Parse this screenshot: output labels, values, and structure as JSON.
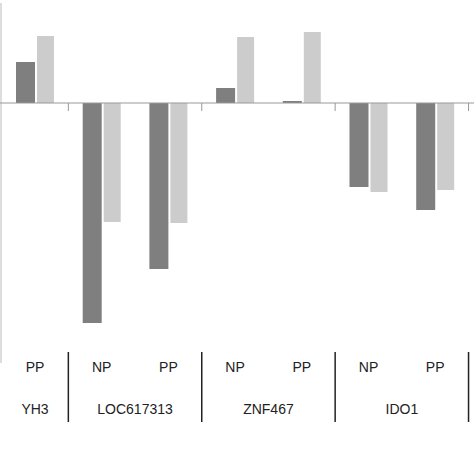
{
  "chart_data": {
    "type": "bar",
    "categories": [
      "PP",
      "NP",
      "PP",
      "NP",
      "PP",
      "NP",
      "PP"
    ],
    "groups": [
      "YH3",
      "LOC617313",
      "LOC617313",
      "ZNF467",
      "ZNF467",
      "IDO1",
      "IDO1"
    ],
    "series": [
      {
        "color": "#7f7f7f",
        "values": [
          0.41,
          -2.2,
          -1.66,
          0.15,
          0.02,
          -0.84,
          -1.07
        ]
      },
      {
        "color": "#cccccc",
        "values": [
          0.67,
          -1.19,
          -1.2,
          0.66,
          0.71,
          -0.89,
          -0.87
        ]
      }
    ],
    "ylim": [
      -2.6,
      1.0
    ],
    "tick_labels": "x",
    "grid": false
  }
}
